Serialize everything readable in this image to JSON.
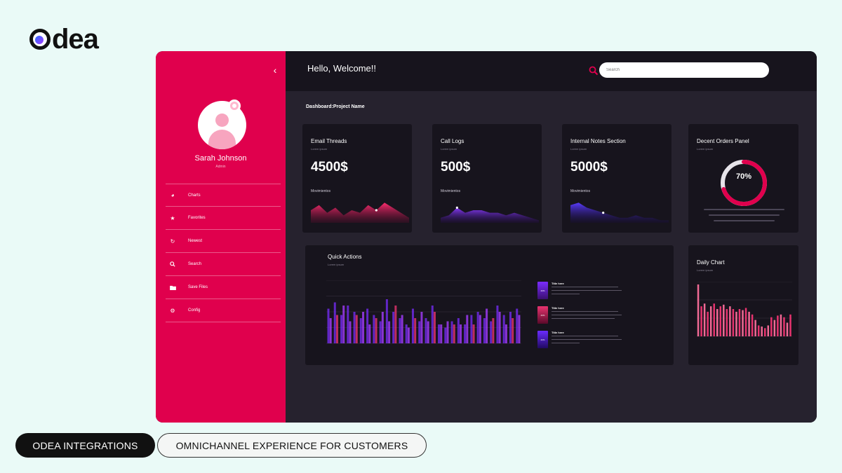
{
  "brand": {
    "name": "dea",
    "mark_icon": "odea-logo-o"
  },
  "colors": {
    "accent": "#e0004d",
    "panel": "#17141d",
    "bg": "#26222e",
    "purple": "#7a2cff",
    "pink": "#e8336f"
  },
  "sidebar": {
    "user_name": "Sarah Johnson",
    "user_role": "Admin",
    "items": [
      {
        "label": "Charts",
        "icon": "pie-chart-icon"
      },
      {
        "label": "Favorites",
        "icon": "star-icon"
      },
      {
        "label": "Newest",
        "icon": "refresh-icon"
      },
      {
        "label": "Search",
        "icon": "search-icon"
      },
      {
        "label": "Save Files",
        "icon": "folder-icon"
      },
      {
        "label": "Config",
        "icon": "gear-icon"
      }
    ]
  },
  "header": {
    "greeting": "Hello, Welcome!!",
    "search_placeholder": "Search"
  },
  "breadcrumb": "Dashboard:Project Name",
  "cards": [
    {
      "title": "Email Threads",
      "sub": "Lorem ipsum",
      "value": "4500$",
      "movement_label": "Movimientos"
    },
    {
      "title": "Call Logs",
      "sub": "Lorem ipsum",
      "value": "500$",
      "movement_label": "Movimientos"
    },
    {
      "title": "Internal Notes Section",
      "sub": "Lorem ipsum",
      "value": "5000$",
      "movement_label": "Movimientos"
    }
  ],
  "orders_panel": {
    "title": "Decent Orders Panel",
    "sub": "Lorem ipsum",
    "percent_label": "70%",
    "percent": 0.7
  },
  "quick_actions": {
    "title": "Quick Actions",
    "sub": "Lorem ipsum",
    "items": [
      {
        "title": "Title here",
        "thumb": "40%"
      },
      {
        "title": "Title here",
        "thumb": "40%"
      },
      {
        "title": "Title here",
        "thumb": "40%"
      }
    ]
  },
  "daily_chart": {
    "title": "Daily Chart",
    "sub": "Lorem ipsum"
  },
  "chart_data": [
    {
      "type": "area",
      "series": [
        {
          "values": [
            5,
            7,
            4,
            6,
            3,
            5,
            4,
            7,
            5,
            8,
            6,
            4,
            2
          ]
        }
      ]
    },
    {
      "type": "area",
      "series": [
        {
          "values": [
            2,
            3,
            6,
            4,
            5,
            5,
            4,
            4,
            3,
            4,
            3,
            2,
            1
          ]
        }
      ]
    },
    {
      "type": "area",
      "series": [
        {
          "values": [
            7,
            8,
            6,
            5,
            4,
            3,
            2,
            2,
            3,
            2,
            2,
            1,
            1
          ]
        }
      ]
    },
    {
      "type": "pie",
      "values": [
        70,
        30
      ]
    },
    {
      "type": "bar",
      "series": [
        {
          "values": [
            55,
            65,
            45,
            60,
            50,
            40,
            55,
            45,
            35,
            70,
            50,
            40,
            30,
            55,
            35,
            40,
            60,
            30,
            25,
            35,
            40,
            30,
            45,
            50,
            40,
            35,
            60,
            45,
            50,
            55
          ]
        },
        {
          "values": [
            40,
            45,
            60,
            35,
            45,
            50,
            30,
            40,
            50,
            35,
            60,
            45,
            25,
            40,
            50,
            35,
            50,
            30,
            35,
            30,
            30,
            45,
            30,
            45,
            55,
            40,
            50,
            30,
            40,
            45
          ]
        }
      ]
    },
    {
      "type": "bar",
      "values": [
        95,
        55,
        60,
        45,
        55,
        60,
        50,
        55,
        58,
        50,
        55,
        50,
        45,
        50,
        48,
        52,
        45,
        40,
        30,
        20,
        18,
        15,
        20,
        35,
        30,
        38,
        40,
        35,
        25,
        40
      ]
    }
  ],
  "footer": {
    "tag_primary": "ODEA INTEGRATIONS",
    "tag_secondary": "OMNICHANNEL EXPERIENCE FOR CUSTOMERS"
  }
}
